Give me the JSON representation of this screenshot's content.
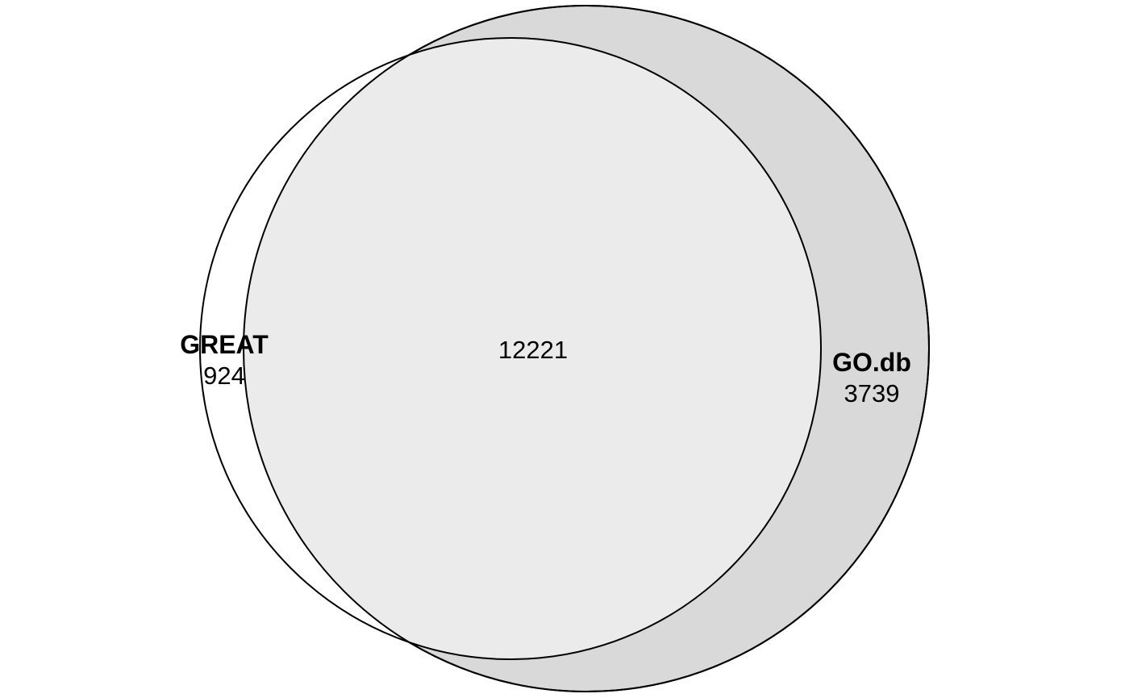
{
  "venn": {
    "sets": [
      {
        "name": "GREAT",
        "only_count": "924",
        "fill": "#ffffff",
        "stroke": "#000000"
      },
      {
        "name": "GO.db",
        "only_count": "3739",
        "fill": "#d9d9d9",
        "stroke": "#000000"
      }
    ],
    "intersection": {
      "count": "12221",
      "fill": "#ebebeb"
    }
  }
}
